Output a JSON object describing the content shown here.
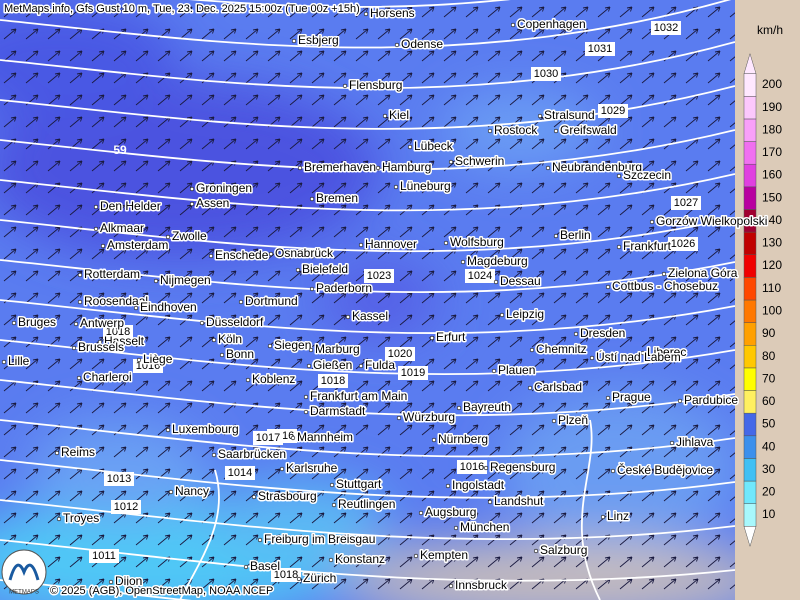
{
  "header": {
    "title": "MetMaps.info, Gfs Gust 10 m, Tue, 23. Dec. 2025 15:00z (Tue 00z +15h)"
  },
  "footer": {
    "credit": "© 2025 (AGB), OpenStreetMap, NOAA NCEP",
    "logo": "METMAPS"
  },
  "map": {
    "max_label": "59",
    "isobar_labels": [
      "1032",
      "1031",
      "1030",
      "1029",
      "1027",
      "1026",
      "1024",
      "1023",
      "1020",
      "1019",
      "1018",
      "1018",
      "1016",
      "1016",
      "1014",
      "1013",
      "1012",
      "1011",
      "1016",
      "1018",
      "1017"
    ],
    "cities": [
      "Horsens",
      "Copenhagen",
      "Esbjerg",
      "Odense",
      "Flensburg",
      "Kiel",
      "Stralsund",
      "Rostock",
      "Greifswald",
      "Lübeck",
      "Schwerin",
      "Neubrandenburg",
      "Szczecin",
      "Bremerhaven",
      "Hamburg",
      "Groningen",
      "Lüneburg",
      "Assen",
      "Bremen",
      "Den Helder",
      "Gorzów Wielkopolski",
      "Alkmaar",
      "Zwolle",
      "Amsterdam",
      "Berlin",
      "Hannover",
      "Wolfsburg",
      "Frankfurt",
      "Enschede",
      "Osnabrück",
      "Magdeburg",
      "Bielefeld",
      "Zielona Góra",
      "Rotterdam",
      "Nijmegen",
      "Dessau",
      "Paderborn",
      "Cottbus - Chosebuz",
      "Roosendaal",
      "Eindhoven",
      "Dortmund",
      "Leipzig",
      "Kassel",
      "Bruges",
      "Antwerp",
      "Düsseldorf",
      "Dresden",
      "Erfurt",
      "Hasselt",
      "Köln",
      "Siegen",
      "Marburg",
      "Brussels",
      "Bonn",
      "Chemnitz",
      "Liberec",
      "Ústí nad Labem",
      "Liège",
      "Lille",
      "Gießen",
      "Fulda",
      "Plauen",
      "Charleroi",
      "Koblenz",
      "Carlsbad",
      "Frankfurt am Main",
      "Prague",
      "Pardubice",
      "Darmstadt",
      "Bayreuth",
      "Würzburg",
      "Plzeň",
      "Luxembourg",
      "Mannheim",
      "Nürnberg",
      "Jihlava",
      "Reims",
      "Saarbrücken",
      "Regensburg",
      "Karlsruhe",
      "České Budějovice",
      "Ingolstadt",
      "Stuttgart",
      "Nancy",
      "Strasbourg",
      "Landshut",
      "Reutlingen",
      "Troyes",
      "Augsburg",
      "Linz",
      "München",
      "Freiburg im Breisgau",
      "Salzburg",
      "Kempten",
      "Konstanz",
      "Basel",
      "Zürich",
      "Innsbruck",
      "Dijon"
    ]
  },
  "legend": {
    "unit": "km/h",
    "ticks": [
      10,
      20,
      30,
      40,
      50,
      60,
      70,
      80,
      90,
      100,
      110,
      120,
      130,
      140,
      150,
      160,
      170,
      180,
      190,
      200
    ],
    "colors": [
      "#a8f8fc",
      "#70e8fc",
      "#40c0f4",
      "#3c90ec",
      "#4468e8",
      "#fff060",
      "#ffff00",
      "#ffc800",
      "#ffa000",
      "#ff7800",
      "#ff4800",
      "#f00000",
      "#c00000",
      "#a00030",
      "#b800a0",
      "#e040e0",
      "#f070f0",
      "#f8a0f8",
      "#fcc8fc",
      "#ffe8ff"
    ]
  }
}
